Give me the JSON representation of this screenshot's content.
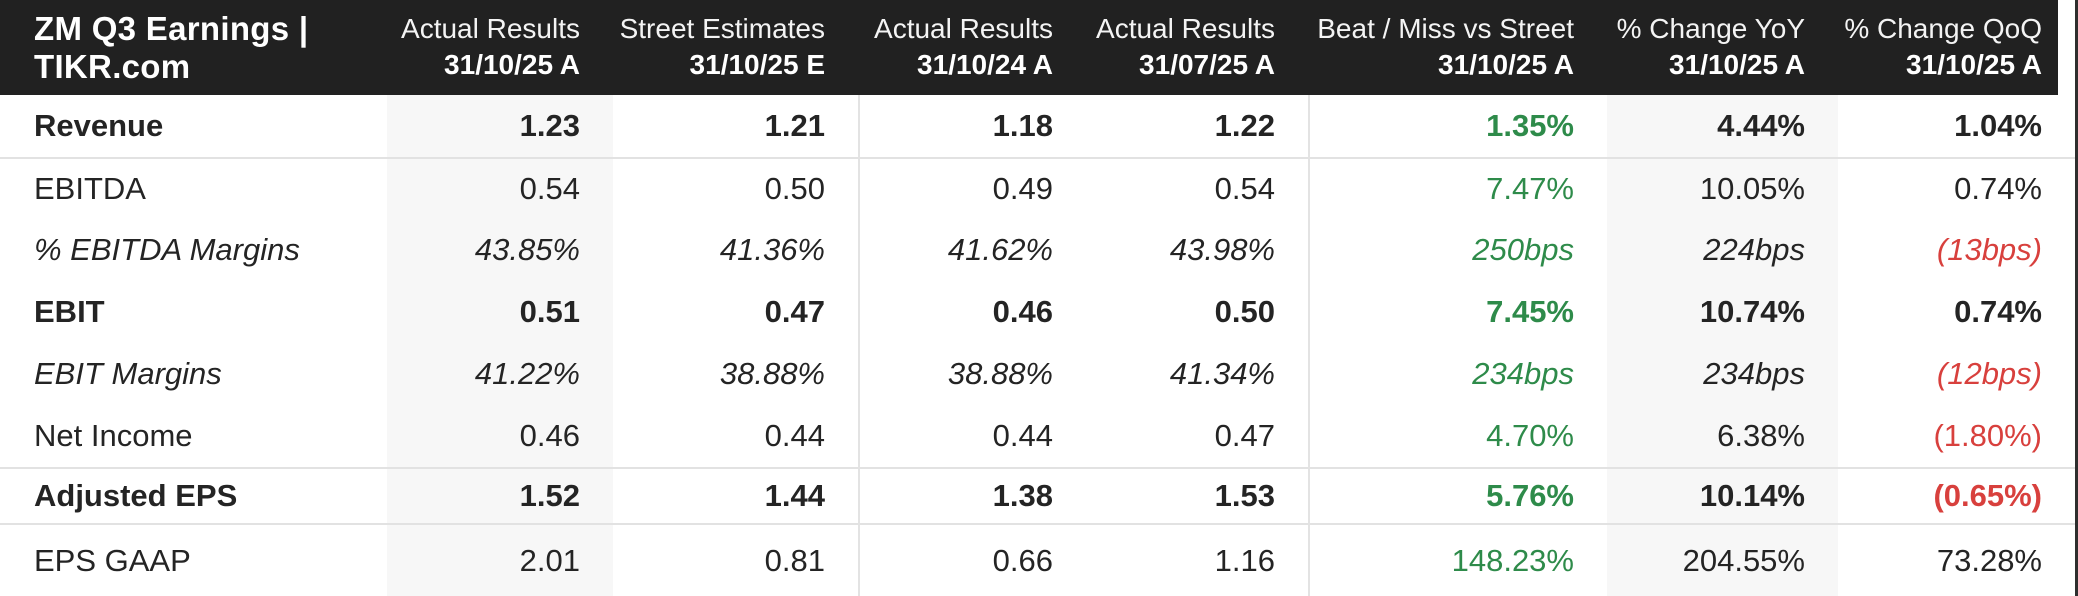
{
  "title": "ZM Q3 Earnings | TIKR.com",
  "colors": {
    "header_bg": "#212121",
    "positive": "#2e8b4a",
    "negative": "#d8403d",
    "column_shade": "#f7f7f7",
    "separator": "#e2e2e2"
  },
  "columns": [
    {
      "label": "Actual Results",
      "date": "31/10/25 A",
      "shaded": true,
      "divider_left": false
    },
    {
      "label": "Street Estimates",
      "date": "31/10/25 E",
      "shaded": false,
      "divider_left": false
    },
    {
      "label": "Actual Results",
      "date": "31/10/24 A",
      "shaded": false,
      "divider_left": true
    },
    {
      "label": "Actual Results",
      "date": "31/07/25 A",
      "shaded": false,
      "divider_left": false
    },
    {
      "label": "Beat / Miss vs Street",
      "date": "31/10/25 A",
      "shaded": false,
      "divider_left": true
    },
    {
      "label": "% Change YoY",
      "date": "31/10/25 A",
      "shaded": true,
      "divider_left": false
    },
    {
      "label": "% Change QoQ",
      "date": "31/10/25 A",
      "shaded": false,
      "divider_left": false
    }
  ],
  "rows": [
    {
      "label": "Revenue",
      "style": "bold",
      "separator_top": false,
      "values": [
        "1.23",
        "1.21",
        "1.18",
        "1.22",
        "1.35%",
        "4.44%",
        "1.04%"
      ],
      "value_colors": [
        "default",
        "default",
        "default",
        "default",
        "green",
        "default",
        "default"
      ]
    },
    {
      "label": "EBITDA",
      "style": "regular",
      "separator_top": true,
      "values": [
        "0.54",
        "0.50",
        "0.49",
        "0.54",
        "7.47%",
        "10.05%",
        "0.74%"
      ],
      "value_colors": [
        "default",
        "default",
        "default",
        "default",
        "green",
        "default",
        "default"
      ]
    },
    {
      "label": "% EBITDA Margins",
      "style": "italic",
      "separator_top": false,
      "values": [
        "43.85%",
        "41.36%",
        "41.62%",
        "43.98%",
        "250bps",
        "224bps",
        "(13bps)"
      ],
      "value_colors": [
        "default",
        "default",
        "default",
        "default",
        "green",
        "default",
        "red"
      ]
    },
    {
      "label": "EBIT",
      "style": "bold",
      "separator_top": false,
      "values": [
        "0.51",
        "0.47",
        "0.46",
        "0.50",
        "7.45%",
        "10.74%",
        "0.74%"
      ],
      "value_colors": [
        "default",
        "default",
        "default",
        "default",
        "green",
        "default",
        "default"
      ]
    },
    {
      "label": "EBIT Margins",
      "style": "italic",
      "separator_top": false,
      "values": [
        "41.22%",
        "38.88%",
        "38.88%",
        "41.34%",
        "234bps",
        "234bps",
        "(12bps)"
      ],
      "value_colors": [
        "default",
        "default",
        "default",
        "default",
        "green",
        "default",
        "red"
      ]
    },
    {
      "label": "Net Income",
      "style": "regular",
      "separator_top": false,
      "values": [
        "0.46",
        "0.44",
        "0.44",
        "0.47",
        "4.70%",
        "6.38%",
        "(1.80%)"
      ],
      "value_colors": [
        "default",
        "default",
        "default",
        "default",
        "green",
        "default",
        "red"
      ]
    },
    {
      "label": "Adjusted EPS",
      "style": "bold",
      "separator_top": true,
      "values": [
        "1.52",
        "1.44",
        "1.38",
        "1.53",
        "5.76%",
        "10.14%",
        "(0.65%)"
      ],
      "value_colors": [
        "default",
        "default",
        "default",
        "default",
        "green",
        "default",
        "red"
      ]
    },
    {
      "label": "EPS GAAP",
      "style": "regular",
      "separator_top": true,
      "values": [
        "2.01",
        "0.81",
        "0.66",
        "1.16",
        "148.23%",
        "204.55%",
        "73.28%"
      ],
      "value_colors": [
        "default",
        "default",
        "default",
        "default",
        "green",
        "default",
        "default"
      ]
    }
  ]
}
